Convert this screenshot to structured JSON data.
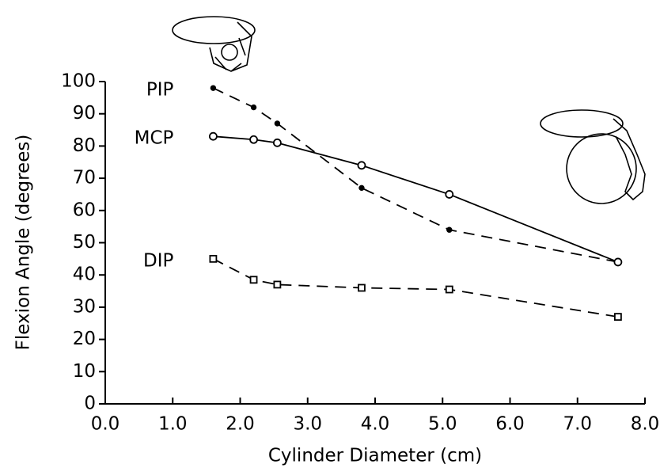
{
  "chart_data": {
    "type": "line",
    "x_label": "Cylinder Diameter (cm)",
    "y_label": "Flexion Angle (degrees)",
    "xlim": [
      0,
      8
    ],
    "ylim": [
      0,
      100
    ],
    "xticks": [
      {
        "value": 0,
        "label": "0.0"
      },
      {
        "value": 1,
        "label": "1.0"
      },
      {
        "value": 2,
        "label": "2.0"
      },
      {
        "value": 3,
        "label": "3.0"
      },
      {
        "value": 4,
        "label": "4.0"
      },
      {
        "value": 5,
        "label": "5.0"
      },
      {
        "value": 6,
        "label": "6.0"
      },
      {
        "value": 7,
        "label": "7.0"
      },
      {
        "value": 8,
        "label": "8.0"
      }
    ],
    "yticks": [
      0,
      10,
      20,
      30,
      40,
      50,
      60,
      70,
      80,
      90,
      100
    ],
    "grid": false,
    "series": [
      {
        "name": "PIP",
        "color": "#000000",
        "dash": "dashed",
        "marker": "dot",
        "x": [
          1.6,
          2.2,
          2.55,
          3.8,
          5.1,
          7.6
        ],
        "values": [
          98,
          92,
          87,
          67,
          54,
          44
        ]
      },
      {
        "name": "MCP",
        "color": "#000000",
        "dash": "solid",
        "marker": "circle",
        "x": [
          1.6,
          2.2,
          2.55,
          3.8,
          5.1,
          7.6
        ],
        "values": [
          83,
          82,
          81,
          74,
          65,
          44
        ]
      },
      {
        "name": "DIP",
        "color": "#000000",
        "dash": "dashed",
        "marker": "square",
        "x": [
          1.6,
          2.2,
          2.55,
          3.8,
          5.1,
          7.6
        ],
        "values": [
          45,
          38.5,
          37,
          36,
          35.5,
          27
        ]
      }
    ]
  }
}
